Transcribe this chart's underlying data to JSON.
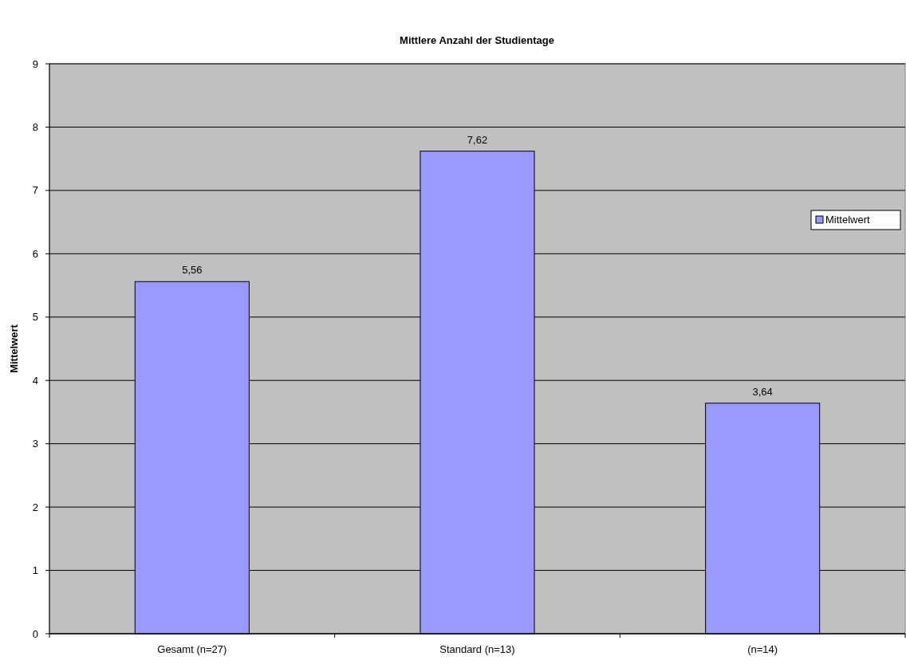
{
  "chart_data": {
    "type": "bar",
    "title": "Mittlere Anzahl der Studientage",
    "ylabel": "Mittelwert",
    "categories": [
      "Gesamt (n=27)",
      "Standard (n=13)",
      "(n=14)"
    ],
    "series": [
      {
        "name": "Mittelwert",
        "color": "#9999ff",
        "values": [
          5.56,
          7.62,
          3.64
        ]
      }
    ],
    "value_labels": [
      "5,56",
      "7,62",
      "3,64"
    ],
    "ylim": [
      0,
      9
    ],
    "yticks": [
      0,
      1,
      2,
      3,
      4,
      5,
      6,
      7,
      8,
      9
    ],
    "grid": "y",
    "legend": "right"
  }
}
